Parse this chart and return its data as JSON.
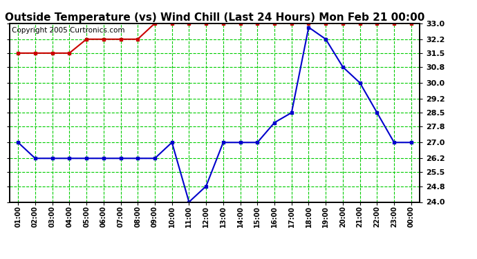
{
  "title": "Outside Temperature (vs) Wind Chill (Last 24 Hours) Mon Feb 21 00:00",
  "copyright": "Copyright 2005 Curtronics.com",
  "x_labels": [
    "01:00",
    "02:00",
    "03:00",
    "04:00",
    "05:00",
    "06:00",
    "07:00",
    "08:00",
    "09:00",
    "10:00",
    "11:00",
    "12:00",
    "13:00",
    "14:00",
    "15:00",
    "16:00",
    "17:00",
    "18:00",
    "19:00",
    "20:00",
    "21:00",
    "22:00",
    "23:00",
    "00:00"
  ],
  "red_data": [
    31.5,
    31.5,
    31.5,
    31.5,
    32.2,
    32.2,
    32.2,
    32.2,
    33.0,
    33.0,
    33.0,
    33.0,
    33.0,
    33.0,
    33.0,
    33.0,
    33.0,
    33.0,
    33.0,
    33.0,
    33.0,
    33.0,
    33.0,
    33.0
  ],
  "blue_data": [
    27.0,
    26.2,
    26.2,
    26.2,
    26.2,
    26.2,
    26.2,
    26.2,
    26.2,
    27.0,
    24.0,
    24.8,
    27.0,
    27.0,
    27.0,
    28.0,
    28.5,
    32.8,
    32.2,
    30.8,
    30.0,
    28.5,
    27.0,
    27.0
  ],
  "ylim": [
    24.0,
    33.0
  ],
  "yticks": [
    24.0,
    24.8,
    25.5,
    26.2,
    27.0,
    27.8,
    28.5,
    29.2,
    30.0,
    30.8,
    31.5,
    32.2,
    33.0
  ],
  "red_color": "#cc0000",
  "blue_color": "#0000cc",
  "bg_color": "#ffffff",
  "plot_bg_color": "#ffffff",
  "grid_color": "#00cc00",
  "title_fontsize": 11,
  "copyright_fontsize": 7.5
}
